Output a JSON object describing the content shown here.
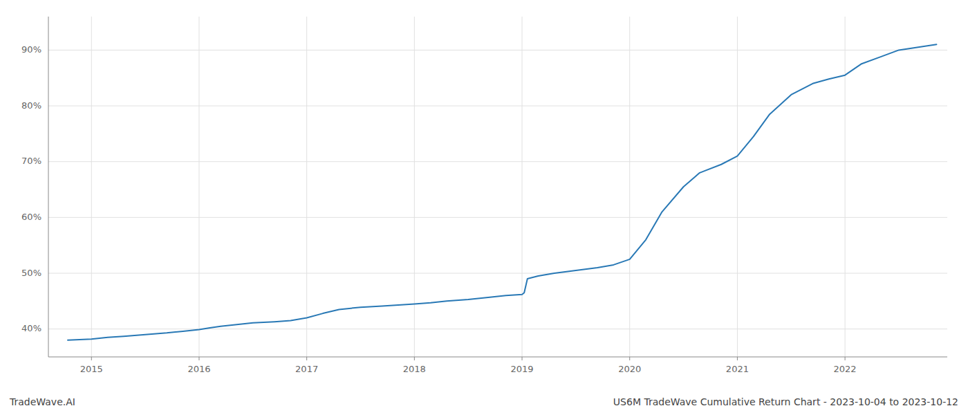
{
  "chart_data": {
    "type": "line",
    "title": "US6M TradeWave Cumulative Return Chart - 2023-10-04 to 2023-10-12",
    "annotations": [
      "TradeWave.AI"
    ],
    "color": "#2878b5",
    "grid": true,
    "x": [
      2014.78,
      2015.0,
      2015.15,
      2015.3,
      2015.5,
      2015.7,
      2015.85,
      2016.0,
      2016.1,
      2016.2,
      2016.35,
      2016.5,
      2016.7,
      2016.85,
      2017.0,
      2017.15,
      2017.3,
      2017.5,
      2017.7,
      2017.85,
      2018.0,
      2018.15,
      2018.3,
      2018.5,
      2018.7,
      2018.85,
      2019.0,
      2019.02,
      2019.05,
      2019.15,
      2019.3,
      2019.5,
      2019.7,
      2019.85,
      2020.0,
      2020.15,
      2020.3,
      2020.5,
      2020.65,
      2020.85,
      2021.0,
      2021.15,
      2021.3,
      2021.5,
      2021.7,
      2021.85,
      2022.0,
      2022.15,
      2022.5,
      2022.85
    ],
    "values": [
      38.0,
      38.2,
      38.5,
      38.7,
      39.0,
      39.3,
      39.6,
      39.9,
      40.2,
      40.5,
      40.8,
      41.1,
      41.3,
      41.5,
      42.0,
      42.8,
      43.5,
      43.9,
      44.1,
      44.3,
      44.5,
      44.7,
      45.0,
      45.3,
      45.7,
      46.0,
      46.2,
      46.5,
      49.0,
      49.5,
      50.0,
      50.5,
      51.0,
      51.5,
      52.5,
      56.0,
      61.0,
      65.5,
      68.0,
      69.5,
      71.0,
      74.5,
      78.5,
      82.0,
      84.0,
      84.8,
      85.5,
      87.5,
      90.0,
      91.0
    ],
    "xlim": [
      2014.6,
      2022.95
    ],
    "xticks": [
      2015,
      2016,
      2017,
      2018,
      2019,
      2020,
      2021,
      2022
    ],
    "ylim": [
      35,
      96
    ],
    "yticks": [
      {
        "value": 40,
        "label": "40%"
      },
      {
        "value": 50,
        "label": "50%"
      },
      {
        "value": 60,
        "label": "60%"
      },
      {
        "value": 70,
        "label": "70%"
      },
      {
        "value": 80,
        "label": "80%"
      },
      {
        "value": 90,
        "label": "90%"
      }
    ]
  }
}
